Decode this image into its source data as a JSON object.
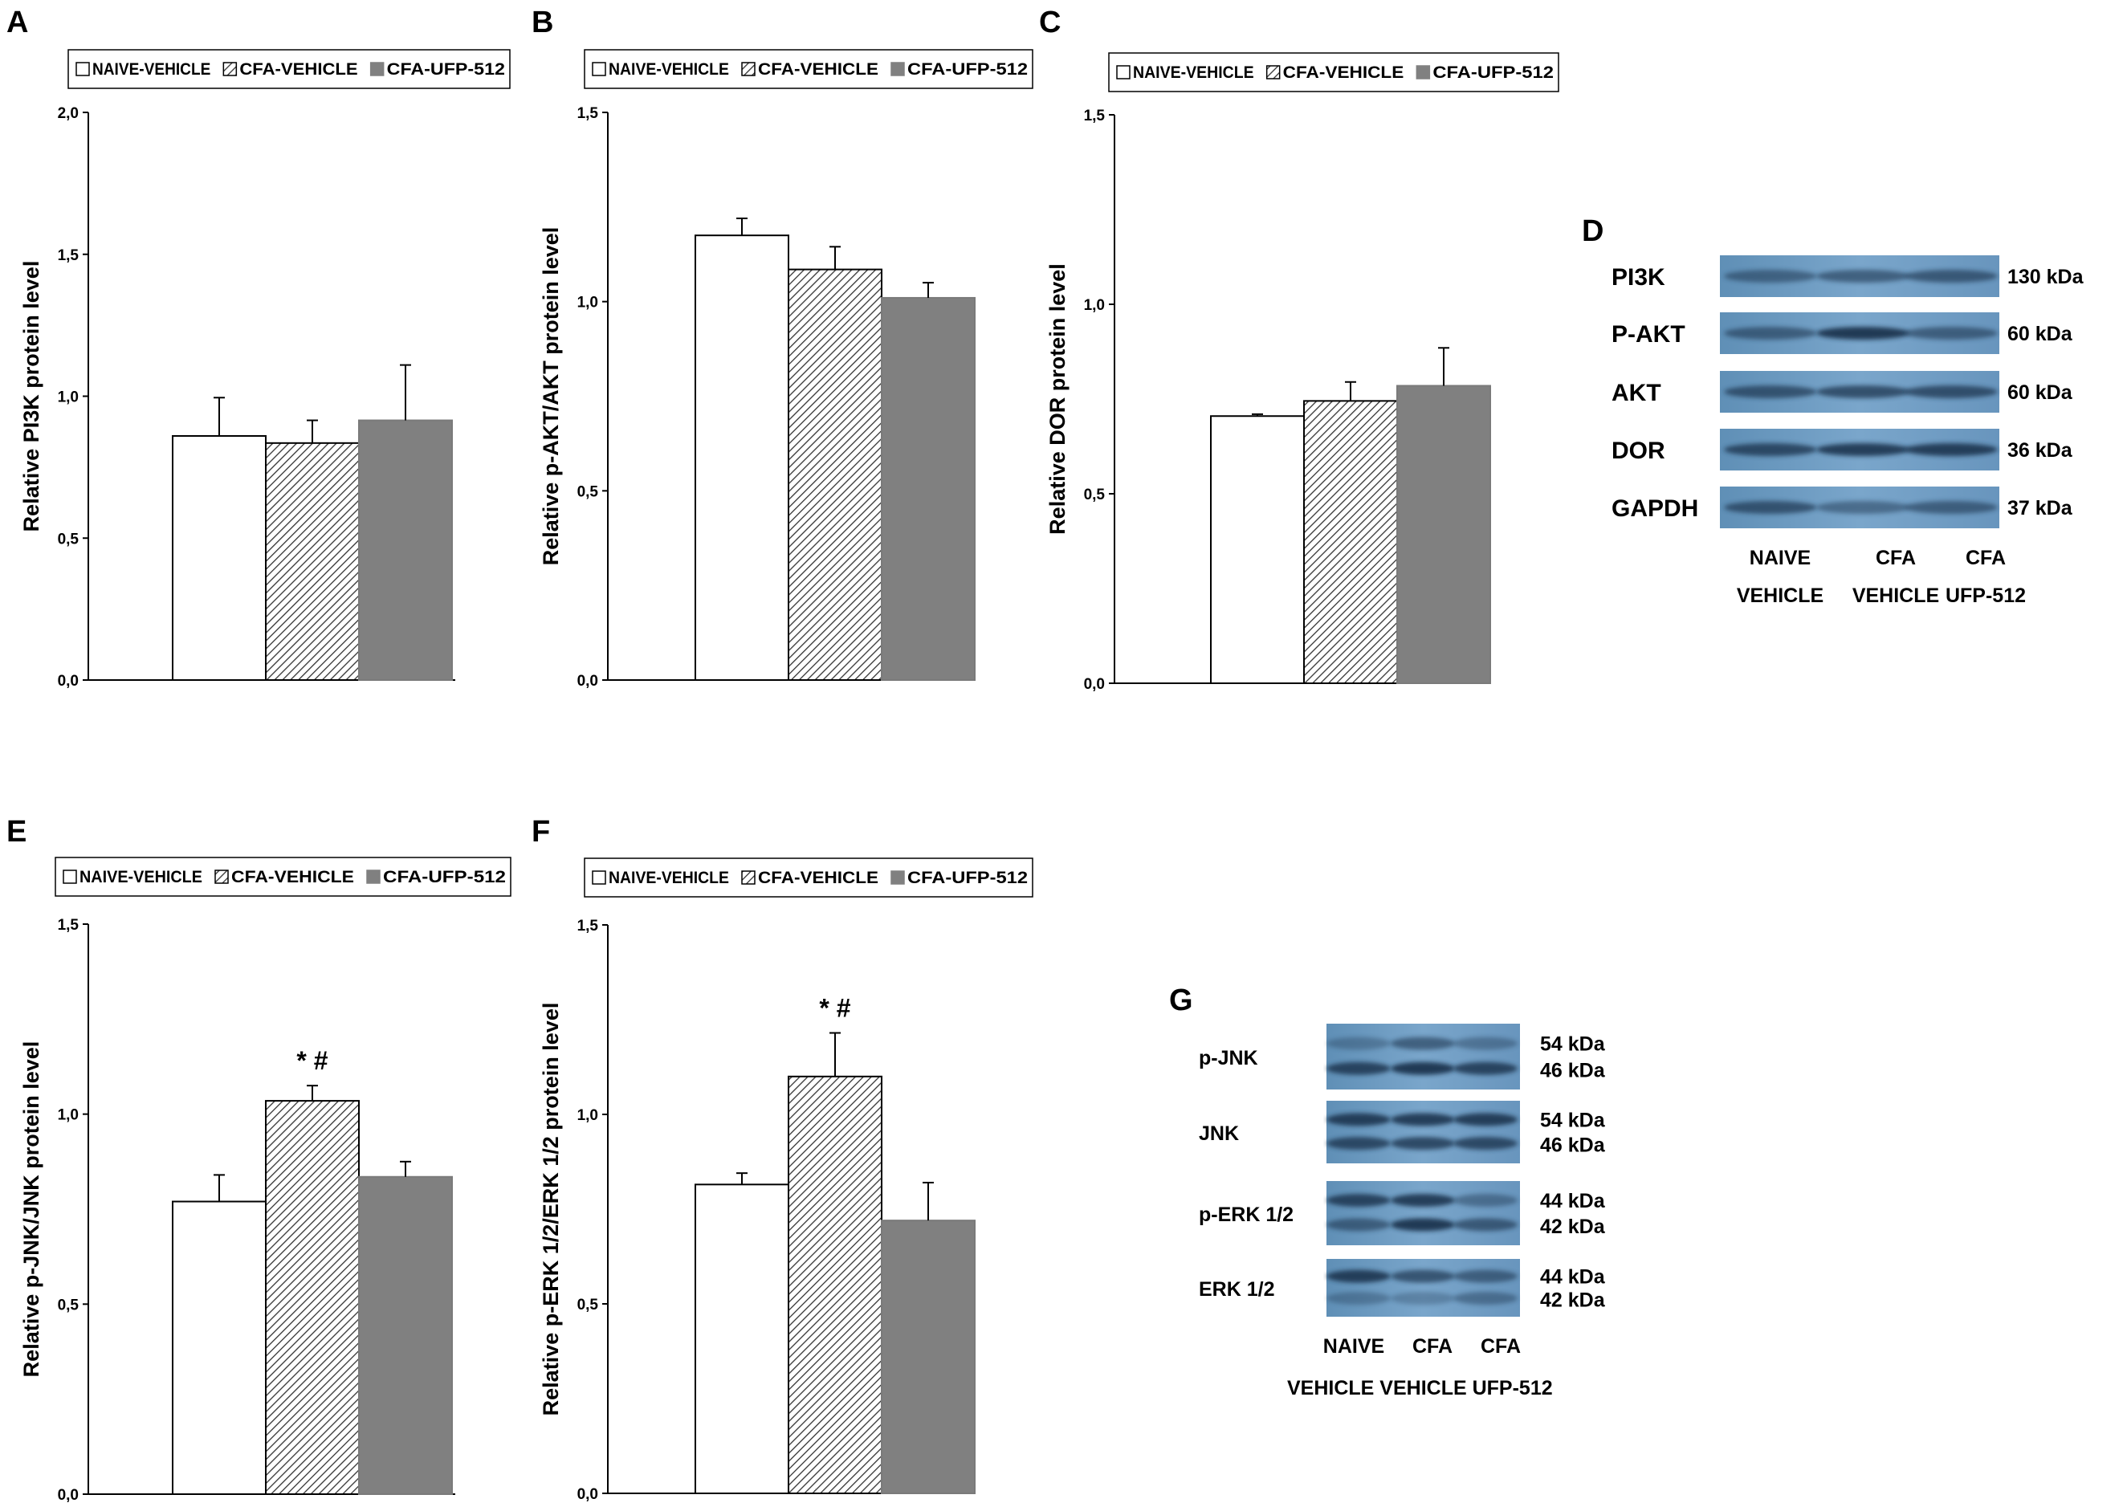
{
  "legend": {
    "swatch_colors": [
      "#ffffff",
      "hatch",
      "#808080"
    ]
  },
  "chart_data": [
    {
      "panel": "A",
      "type": "bar",
      "categories": [
        "NAIVE-VEHICLE",
        "CFA-VEHICLE",
        "CFA-UFP-512"
      ],
      "values": [
        0.86,
        0.835,
        0.915
      ],
      "errors": [
        0.135,
        0.08,
        0.195
      ],
      "ylabel": "Relative PI3K protein level",
      "ylim": [
        0,
        2
      ],
      "ticks": [
        "0,0",
        "0,5",
        "1,0",
        "1,5",
        "2,0"
      ],
      "annotation": "",
      "legend": [
        "NAIVE-VEHICLE",
        "CFA-VEHICLE",
        "CFA-UFP-512"
      ]
    },
    {
      "panel": "B",
      "type": "bar",
      "categories": [
        "NAIVE-VEHICLE",
        "CFA-VEHICLE",
        "CFA-UFP-512"
      ],
      "values": [
        1.175,
        1.085,
        1.01
      ],
      "errors": [
        0.045,
        0.06,
        0.04
      ],
      "ylabel": "Relative p-AKT/AKT protein level",
      "ylim": [
        0,
        1.5
      ],
      "ticks": [
        "0,0",
        "0,5",
        "1,0",
        "1,5"
      ],
      "annotation": "",
      "legend": [
        "NAIVE-VEHICLE",
        "CFA-VEHICLE",
        "CFA-UFP-512"
      ]
    },
    {
      "panel": "C",
      "type": "bar",
      "categories": [
        "NAIVE-VEHICLE",
        "CFA-VEHICLE",
        "CFA-UFP-512"
      ],
      "values": [
        0.705,
        0.745,
        0.785
      ],
      "errors": [
        0.005,
        0.05,
        0.1
      ],
      "ylabel": "Relative DOR protein level",
      "ylim": [
        0,
        1.5
      ],
      "ticks": [
        "0,0",
        "0,5",
        "1,0",
        "1,5"
      ],
      "annotation": "",
      "legend": [
        "NAIVE-VEHICLE",
        "CFA-VEHICLE",
        "CFA-UFP-512"
      ]
    },
    {
      "panel": "E",
      "type": "bar",
      "categories": [
        "NAIVE-VEHICLE",
        "CFA-VEHICLE",
        "CFA-UFP-512"
      ],
      "values": [
        0.77,
        1.035,
        0.835
      ],
      "errors": [
        0.07,
        0.04,
        0.04
      ],
      "ylabel": "Relative p-JNK/JNK protein level",
      "ylim": [
        0,
        1.5
      ],
      "ticks": [
        "0,0",
        "0,5",
        "1,0",
        "1,5"
      ],
      "annotation": "* #",
      "legend": [
        "NAIVE-VEHICLE",
        "CFA-VEHICLE",
        "CFA-UFP-512"
      ]
    },
    {
      "panel": "F",
      "type": "bar",
      "categories": [
        "NAIVE-VEHICLE",
        "CFA-VEHICLE",
        "CFA-UFP-512"
      ],
      "values": [
        0.815,
        1.1,
        0.72
      ],
      "errors": [
        0.03,
        0.115,
        0.1
      ],
      "ylabel": "Relative p-ERK 1/2/ERK 1/2 protein level",
      "ylim": [
        0,
        1.5
      ],
      "ticks": [
        "0,0",
        "0,5",
        "1,0",
        "1,5"
      ],
      "annotation": "* #",
      "legend": [
        "NAIVE-VEHICLE",
        "CFA-VEHICLE",
        "CFA-UFP-512"
      ]
    }
  ],
  "blot_D": {
    "panel": "D",
    "rows": [
      {
        "label": "PI3K",
        "kda": "130 kDa"
      },
      {
        "label": "P-AKT",
        "kda": "60 kDa"
      },
      {
        "label": "AKT",
        "kda": "60 kDa"
      },
      {
        "label": "DOR",
        "kda": "36 kDa"
      },
      {
        "label": "GAPDH",
        "kda": "37 kDa"
      }
    ],
    "columns_line1": [
      "NAIVE",
      "CFA",
      "CFA"
    ],
    "columns_line2": [
      "VEHICLE",
      "VEHICLE",
      "UFP-512"
    ]
  },
  "blot_G": {
    "panel": "G",
    "rows": [
      {
        "label": "p-JNK",
        "kda_top": "54 kDa",
        "kda_bottom": "46 kDa"
      },
      {
        "label": "JNK",
        "kda_top": "54 kDa",
        "kda_bottom": "46 kDa"
      },
      {
        "label": "p-ERK 1/2",
        "kda_top": "44 kDa",
        "kda_bottom": "42 kDa"
      },
      {
        "label": "ERK 1/2",
        "kda_top": "44 kDa",
        "kda_bottom": "42 kDa"
      }
    ],
    "columns_line1": [
      "NAIVE",
      "CFA",
      "CFA"
    ],
    "columns_line2": "VEHICLE VEHICLE UFP-512"
  }
}
